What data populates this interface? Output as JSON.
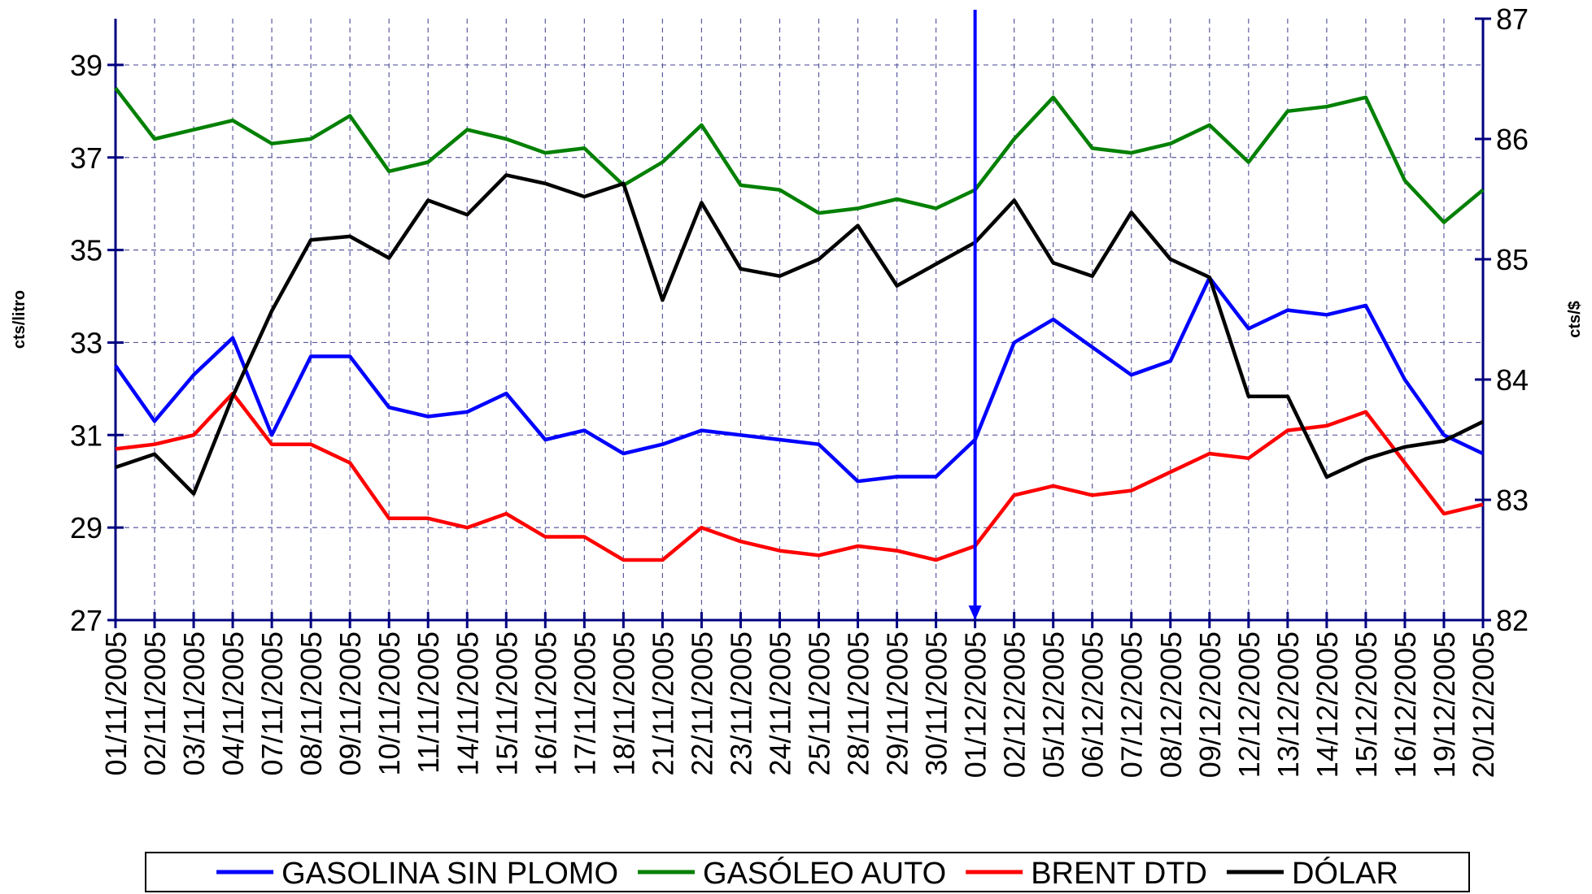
{
  "chart_data": {
    "type": "line",
    "ylabel": "cts/litro",
    "y2label": "cts/$",
    "categories": [
      "01/11/2005",
      "02/11/2005",
      "03/11/2005",
      "04/11/2005",
      "07/11/2005",
      "08/11/2005",
      "09/11/2005",
      "10/11/2005",
      "11/11/2005",
      "14/11/2005",
      "15/11/2005",
      "16/11/2005",
      "17/11/2005",
      "18/11/2005",
      "21/11/2005",
      "22/11/2005",
      "23/11/2005",
      "24/11/2005",
      "25/11/2005",
      "28/11/2005",
      "29/11/2005",
      "30/11/2005",
      "01/12/2005",
      "02/12/2005",
      "05/12/2005",
      "06/12/2005",
      "07/12/2005",
      "08/12/2005",
      "09/12/2005",
      "12/12/2005",
      "13/12/2005",
      "14/12/2005",
      "15/12/2005",
      "16/12/2005",
      "19/12/2005",
      "20/12/2005"
    ],
    "series": [
      {
        "name": "GASOLINA SIN PLOMO",
        "color": "#0000ff",
        "values": [
          32.5,
          31.3,
          32.3,
          33.1,
          31.0,
          32.7,
          32.7,
          31.6,
          31.4,
          31.5,
          31.9,
          30.9,
          31.1,
          30.6,
          30.8,
          31.1,
          31.0,
          30.9,
          30.8,
          30.0,
          30.1,
          30.1,
          30.9,
          33.0,
          33.5,
          32.9,
          32.3,
          32.6,
          34.4,
          33.3,
          33.7,
          33.6,
          33.8,
          32.2,
          31.0,
          30.6
        ]
      },
      {
        "name": "GASÓLEO AUTO",
        "color": "#008000",
        "values": [
          38.5,
          37.4,
          37.6,
          37.8,
          37.3,
          37.4,
          37.9,
          36.7,
          36.9,
          37.6,
          37.4,
          37.1,
          37.2,
          36.4,
          36.9,
          37.7,
          36.4,
          36.3,
          35.8,
          35.9,
          36.1,
          35.9,
          36.3,
          37.4,
          38.3,
          37.2,
          37.1,
          37.3,
          37.7,
          36.9,
          38.0,
          38.1,
          38.3,
          36.5,
          35.6,
          36.3
        ]
      },
      {
        "name": "BRENT DTD",
        "color": "#ff0000",
        "values": [
          30.7,
          30.8,
          31.0,
          31.9,
          30.8,
          30.8,
          30.4,
          29.2,
          29.2,
          29.0,
          29.3,
          28.8,
          28.8,
          28.3,
          28.3,
          29.0,
          28.7,
          28.5,
          28.4,
          28.6,
          28.5,
          28.3,
          28.6,
          29.7,
          29.9,
          29.7,
          29.8,
          30.2,
          30.6,
          30.5,
          31.1,
          31.2,
          31.5,
          30.4,
          29.3,
          29.5
        ]
      },
      {
        "name": "DÓLAR",
        "color": "#000000",
        "axis": "y2",
        "values": [
          83.27,
          83.38,
          83.05,
          83.86,
          84.57,
          85.16,
          85.19,
          85.01,
          85.49,
          85.37,
          85.7,
          85.63,
          85.52,
          85.63,
          84.66,
          85.47,
          84.92,
          84.86,
          85.0,
          85.28,
          84.78,
          84.96,
          85.14,
          85.49,
          84.97,
          84.86,
          85.39,
          85.0,
          84.85,
          83.86,
          83.86,
          83.19,
          83.34,
          83.44,
          83.49,
          83.65
        ]
      }
    ],
    "ylim": [
      27,
      40
    ],
    "yticks": [
      27,
      29,
      31,
      33,
      35,
      37,
      39
    ],
    "y2lim": [
      82,
      87
    ],
    "y2ticks": [
      82,
      83,
      84,
      85,
      86,
      87
    ],
    "grid": true,
    "legend": "bottom",
    "vline": {
      "x": "01/12/2005",
      "color": "#0000ff"
    }
  }
}
